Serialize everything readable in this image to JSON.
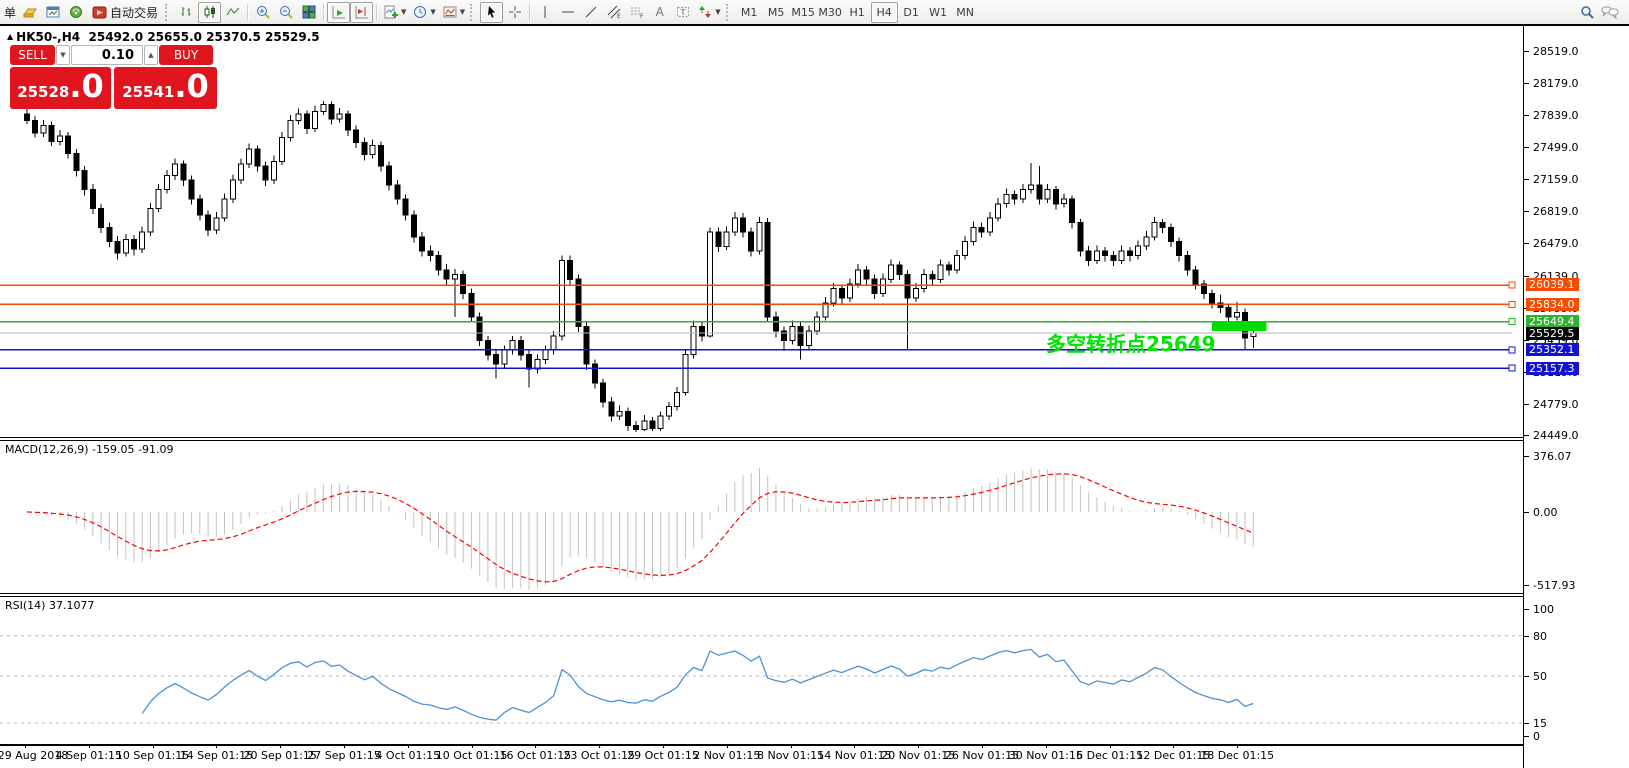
{
  "toolbar": {
    "new_order_label": "单",
    "autotrade_label": "自动交易",
    "timeframes": [
      "M1",
      "M5",
      "M15",
      "M30",
      "H1",
      "H4",
      "D1",
      "W1",
      "MN"
    ],
    "active_timeframe": "H4"
  },
  "chart": {
    "symbol_period": "HK50-,H4",
    "ohlc_text": "25492.0 25655.0 25370.5 25529.5",
    "annotation_text": "多空转折点25649",
    "annotation_color": "#00e400"
  },
  "trade": {
    "sell_label": "SELL",
    "buy_label": "BUY",
    "volume": "0.10",
    "sell_price": "25528",
    "sell_price_big": ".0",
    "buy_price": "25541",
    "buy_price_big": ".0"
  },
  "macd": {
    "label": "MACD(12,26,9) -159.05 -91.09",
    "axis_values": [
      376.07,
      0.0,
      -517.93
    ],
    "axis_labels": [
      "376.07",
      "0.00",
      "-517.93"
    ]
  },
  "rsi": {
    "label": "RSI(14) 37.1077",
    "axis_values": [
      100,
      80,
      50,
      15,
      0
    ],
    "dashed_levels": [
      80,
      50,
      15
    ]
  },
  "x_axis": {
    "dates": [
      "29 Aug 2018",
      "4 Sep 01:15",
      "10 Sep 01:15",
      "14 Sep 01:15",
      "20 Sep 01:15",
      "27 Sep 01:15",
      "4 Oct 01:15",
      "10 Oct 01:15",
      "16 Oct 01:15",
      "23 Oct 01:15",
      "29 Oct 01:15",
      "2 Nov 01:15",
      "8 Nov 01:15",
      "14 Nov 01:15",
      "20 Nov 01:15",
      "26 Nov 01:15",
      "30 Nov 01:15",
      "6 Dec 01:15",
      "12 Dec 01:15",
      "18 Dec 01:15"
    ]
  },
  "chart_data": {
    "type": "candlestick",
    "symbol": "HK50-",
    "period": "H4",
    "current_bar": {
      "open": 25492.0,
      "high": 25655.0,
      "low": 25370.5,
      "close": 25529.5
    },
    "y_ticks": [
      28519,
      28179,
      27839,
      27499,
      27159,
      26819,
      26479,
      26139,
      25799,
      25459,
      25119,
      24779,
      24449
    ],
    "levels": [
      {
        "price": 26039.1,
        "label": "26039.1",
        "color": "#f84b00"
      },
      {
        "price": 25834.0,
        "label": "25834.0",
        "color": "#f84b00"
      },
      {
        "price": 25649.4,
        "label": "25649.4",
        "color": "#2db22d"
      },
      {
        "price": 25529.5,
        "label": "25529.5",
        "color": "#000000",
        "line_color": "#b6b6b6",
        "current": true
      },
      {
        "price": 25352.1,
        "label": "25352.1",
        "color": "#1212d2"
      },
      {
        "price": 25157.3,
        "label": "25157.3",
        "color": "#1212d2"
      }
    ],
    "highlight_box": {
      "x_start_index": 144,
      "x_end_index": 150.6,
      "price_high": 25658,
      "price_low": 25552,
      "color": "#00dd00"
    },
    "macd_params": [
      12,
      26,
      9
    ],
    "rsi_period": 14,
    "candles": [
      [
        27850,
        27905,
        27745,
        27780
      ],
      [
        27780,
        27830,
        27600,
        27650
      ],
      [
        27650,
        27790,
        27610,
        27730
      ],
      [
        27730,
        27770,
        27510,
        27560
      ],
      [
        27560,
        27680,
        27520,
        27620
      ],
      [
        27620,
        27660,
        27380,
        27430
      ],
      [
        27430,
        27480,
        27190,
        27250
      ],
      [
        27250,
        27300,
        26990,
        27050
      ],
      [
        27050,
        27110,
        26790,
        26850
      ],
      [
        26850,
        26900,
        26590,
        26650
      ],
      [
        26650,
        26700,
        26440,
        26500
      ],
      [
        26500,
        26560,
        26310,
        26380
      ],
      [
        26380,
        26580,
        26340,
        26520
      ],
      [
        26520,
        26570,
        26350,
        26420
      ],
      [
        26420,
        26660,
        26380,
        26600
      ],
      [
        26600,
        26910,
        26560,
        26850
      ],
      [
        26850,
        27110,
        26810,
        27050
      ],
      [
        27050,
        27260,
        27010,
        27200
      ],
      [
        27200,
        27380,
        27150,
        27320
      ],
      [
        27320,
        27360,
        27090,
        27150
      ],
      [
        27150,
        27200,
        26890,
        26950
      ],
      [
        26950,
        27000,
        26720,
        26780
      ],
      [
        26780,
        26830,
        26560,
        26620
      ],
      [
        26620,
        26810,
        26580,
        26750
      ],
      [
        26750,
        27010,
        26710,
        26950
      ],
      [
        26950,
        27210,
        26910,
        27150
      ],
      [
        27150,
        27380,
        27110,
        27320
      ],
      [
        27320,
        27540,
        27280,
        27480
      ],
      [
        27480,
        27520,
        27240,
        27300
      ],
      [
        27300,
        27350,
        27090,
        27150
      ],
      [
        27150,
        27410,
        27110,
        27350
      ],
      [
        27350,
        27660,
        27310,
        27600
      ],
      [
        27600,
        27840,
        27560,
        27780
      ],
      [
        27780,
        27910,
        27740,
        27850
      ],
      [
        27850,
        27890,
        27640,
        27700
      ],
      [
        27700,
        27940,
        27660,
        27880
      ],
      [
        27880,
        27990,
        27840,
        27950
      ],
      [
        27950,
        27985,
        27740,
        27800
      ],
      [
        27800,
        27915,
        27760,
        27850
      ],
      [
        27850,
        27890,
        27620,
        27680
      ],
      [
        27680,
        27730,
        27490,
        27550
      ],
      [
        27550,
        27600,
        27360,
        27420
      ],
      [
        27420,
        27580,
        27380,
        27520
      ],
      [
        27520,
        27560,
        27240,
        27300
      ],
      [
        27300,
        27350,
        27040,
        27100
      ],
      [
        27100,
        27150,
        26890,
        26950
      ],
      [
        26950,
        27000,
        26720,
        26780
      ],
      [
        26780,
        26830,
        26490,
        26550
      ],
      [
        26550,
        26600,
        26340,
        26400
      ],
      [
        26400,
        26460,
        26290,
        26350
      ],
      [
        26350,
        26400,
        26140,
        26200
      ],
      [
        26200,
        26260,
        26040,
        26100
      ],
      [
        26100,
        26210,
        25700,
        26150
      ],
      [
        26150,
        26190,
        25890,
        25950
      ],
      [
        25950,
        26000,
        25640,
        25700
      ],
      [
        25700,
        25750,
        25390,
        25450
      ],
      [
        25450,
        25500,
        25240,
        25300
      ],
      [
        25300,
        25360,
        25050,
        25200
      ],
      [
        25200,
        25400,
        25150,
        25350
      ],
      [
        25350,
        25500,
        25300,
        25450
      ],
      [
        25450,
        25500,
        25240,
        25300
      ],
      [
        25300,
        25350,
        24950,
        25150
      ],
      [
        25150,
        25300,
        25100,
        25250
      ],
      [
        25250,
        25400,
        25200,
        25350
      ],
      [
        25350,
        25550,
        25300,
        25500
      ],
      [
        25500,
        26350,
        25450,
        26300
      ],
      [
        26300,
        26350,
        26040,
        26100
      ],
      [
        26100,
        26150,
        25540,
        25600
      ],
      [
        25600,
        25650,
        25140,
        25200
      ],
      [
        25200,
        25250,
        24940,
        25000
      ],
      [
        25000,
        25050,
        24740,
        24800
      ],
      [
        24800,
        24850,
        24590,
        24650
      ],
      [
        24650,
        24760,
        24610,
        24700
      ],
      [
        24700,
        24740,
        24490,
        24550
      ],
      [
        24550,
        24600,
        24480,
        24510
      ],
      [
        24510,
        24660,
        24490,
        24600
      ],
      [
        24600,
        24640,
        24490,
        24520
      ],
      [
        24520,
        24700,
        24490,
        24650
      ],
      [
        24650,
        24800,
        24610,
        24750
      ],
      [
        24750,
        24960,
        24710,
        24900
      ],
      [
        24900,
        25360,
        24870,
        25300
      ],
      [
        25300,
        25660,
        25260,
        25600
      ],
      [
        25600,
        25650,
        25440,
        25500
      ],
      [
        25500,
        26650,
        25480,
        26600
      ],
      [
        26600,
        26650,
        26390,
        26450
      ],
      [
        26450,
        26660,
        26410,
        26600
      ],
      [
        26600,
        26810,
        26560,
        26750
      ],
      [
        26750,
        26800,
        26540,
        26600
      ],
      [
        26600,
        26650,
        26340,
        26400
      ],
      [
        26400,
        26760,
        26360,
        26700
      ],
      [
        26700,
        26750,
        25640,
        25700
      ],
      [
        25700,
        25760,
        25480,
        25550
      ],
      [
        25550,
        25600,
        25340,
        25450
      ],
      [
        25450,
        25660,
        25410,
        25600
      ],
      [
        25600,
        25640,
        25250,
        25400
      ],
      [
        25400,
        25610,
        25360,
        25550
      ],
      [
        25550,
        25760,
        25510,
        25700
      ],
      [
        25700,
        25910,
        25660,
        25850
      ],
      [
        25850,
        26060,
        25810,
        26000
      ],
      [
        26000,
        26040,
        25840,
        25900
      ],
      [
        25900,
        26110,
        25860,
        26050
      ],
      [
        26050,
        26260,
        26010,
        26200
      ],
      [
        26200,
        26240,
        26040,
        26100
      ],
      [
        26100,
        26150,
        25890,
        25950
      ],
      [
        25950,
        26160,
        25910,
        26100
      ],
      [
        26100,
        26310,
        26060,
        26250
      ],
      [
        26250,
        26290,
        26090,
        26150
      ],
      [
        26150,
        26200,
        25350,
        25900
      ],
      [
        25900,
        26060,
        25860,
        26000
      ],
      [
        26000,
        26210,
        25960,
        26150
      ],
      [
        26150,
        26190,
        26040,
        26100
      ],
      [
        26100,
        26310,
        26060,
        26250
      ],
      [
        26250,
        26290,
        26140,
        26200
      ],
      [
        26200,
        26410,
        26160,
        26350
      ],
      [
        26350,
        26560,
        26310,
        26500
      ],
      [
        26500,
        26710,
        26460,
        26650
      ],
      [
        26650,
        26700,
        26540,
        26600
      ],
      [
        26600,
        26810,
        26560,
        26750
      ],
      [
        26750,
        26960,
        26710,
        26900
      ],
      [
        26900,
        27060,
        26860,
        27000
      ],
      [
        27000,
        27040,
        26890,
        26950
      ],
      [
        26950,
        27110,
        26910,
        27050
      ],
      [
        27050,
        27330,
        27010,
        27100
      ],
      [
        27100,
        27300,
        26890,
        26950
      ],
      [
        26950,
        27110,
        26910,
        27050
      ],
      [
        27050,
        27090,
        26840,
        26900
      ],
      [
        26900,
        27010,
        26860,
        26950
      ],
      [
        26950,
        26990,
        26640,
        26700
      ],
      [
        26700,
        26740,
        26340,
        26400
      ],
      [
        26400,
        26450,
        26240,
        26300
      ],
      [
        26300,
        26460,
        26260,
        26400
      ],
      [
        26400,
        26440,
        26290,
        26350
      ],
      [
        26350,
        26400,
        26240,
        26300
      ],
      [
        26300,
        26460,
        26260,
        26400
      ],
      [
        26400,
        26440,
        26290,
        26350
      ],
      [
        26350,
        26510,
        26310,
        26450
      ],
      [
        26450,
        26610,
        26410,
        26550
      ],
      [
        26550,
        26760,
        26510,
        26700
      ],
      [
        26700,
        26740,
        26590,
        26650
      ],
      [
        26650,
        26690,
        26440,
        26500
      ],
      [
        26500,
        26540,
        26290,
        26350
      ],
      [
        26350,
        26400,
        26140,
        26200
      ],
      [
        26200,
        26240,
        25990,
        26050
      ],
      [
        26050,
        26090,
        25890,
        25950
      ],
      [
        25950,
        25990,
        25790,
        25850
      ],
      [
        25850,
        25940,
        25740,
        25800
      ],
      [
        25800,
        25840,
        25640,
        25700
      ],
      [
        25700,
        25860,
        25660,
        25750
      ],
      [
        25750,
        25790,
        25350,
        25480
      ],
      [
        25492,
        25655,
        25370.5,
        25529.5
      ]
    ]
  }
}
